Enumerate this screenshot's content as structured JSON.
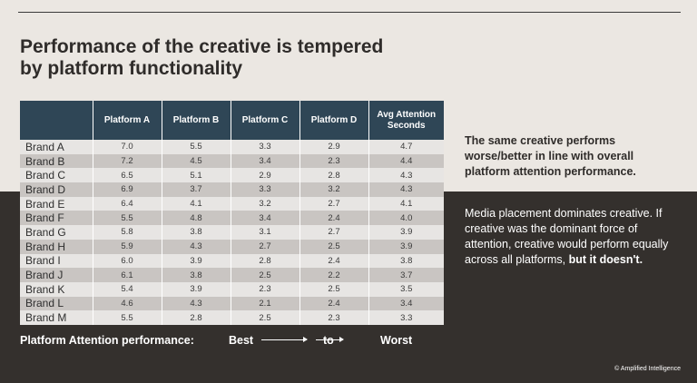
{
  "title": "Performance of the creative is tempered\nby platform functionality",
  "table": {
    "headers": [
      "",
      "Platform A",
      "Platform B",
      "Platform C",
      "Platform D",
      "Avg Attention\nSeconds"
    ],
    "rows": [
      [
        "Brand A",
        "7.0",
        "5.5",
        "3.3",
        "2.9",
        "4.7"
      ],
      [
        "Brand B",
        "7.2",
        "4.5",
        "3.4",
        "2.3",
        "4.4"
      ],
      [
        "Brand C",
        "6.5",
        "5.1",
        "2.9",
        "2.8",
        "4.3"
      ],
      [
        "Brand D",
        "6.9",
        "3.7",
        "3.3",
        "3.2",
        "4.3"
      ],
      [
        "Brand E",
        "6.4",
        "4.1",
        "3.2",
        "2.7",
        "4.1"
      ],
      [
        "Brand F",
        "5.5",
        "4.8",
        "3.4",
        "2.4",
        "4.0"
      ],
      [
        "Brand G",
        "5.8",
        "3.8",
        "3.1",
        "2.7",
        "3.9"
      ],
      [
        "Brand H",
        "5.9",
        "4.3",
        "2.7",
        "2.5",
        "3.9"
      ],
      [
        "Brand I",
        "6.0",
        "3.9",
        "2.8",
        "2.4",
        "3.8"
      ],
      [
        "Brand J",
        "6.1",
        "3.8",
        "2.5",
        "2.2",
        "3.7"
      ],
      [
        "Brand K",
        "5.4",
        "3.9",
        "2.3",
        "2.5",
        "3.5"
      ],
      [
        "Brand L",
        "4.6",
        "4.3",
        "2.1",
        "2.4",
        "3.4"
      ],
      [
        "Brand M",
        "5.5",
        "2.8",
        "2.5",
        "2.3",
        "3.3"
      ]
    ]
  },
  "side": {
    "headline": "The same creative performs worse/better in line with overall platform attention performance.",
    "para": "Media placement dominates creative. If creative was the dominant force of attention, creative would perform equally across all platforms, ",
    "para_bold": "but it doesn't."
  },
  "legend": {
    "label": "Platform Attention performance:",
    "best": "Best",
    "to": "to",
    "worst": "Worst"
  },
  "footer": "© Amplified Intelligence",
  "colors": {
    "background_light": "#ebe7e2",
    "background_dark": "#34302d",
    "table_header": "#2f4656",
    "row_light": "#e7e5e3",
    "row_dark": "#c9c5c2"
  }
}
